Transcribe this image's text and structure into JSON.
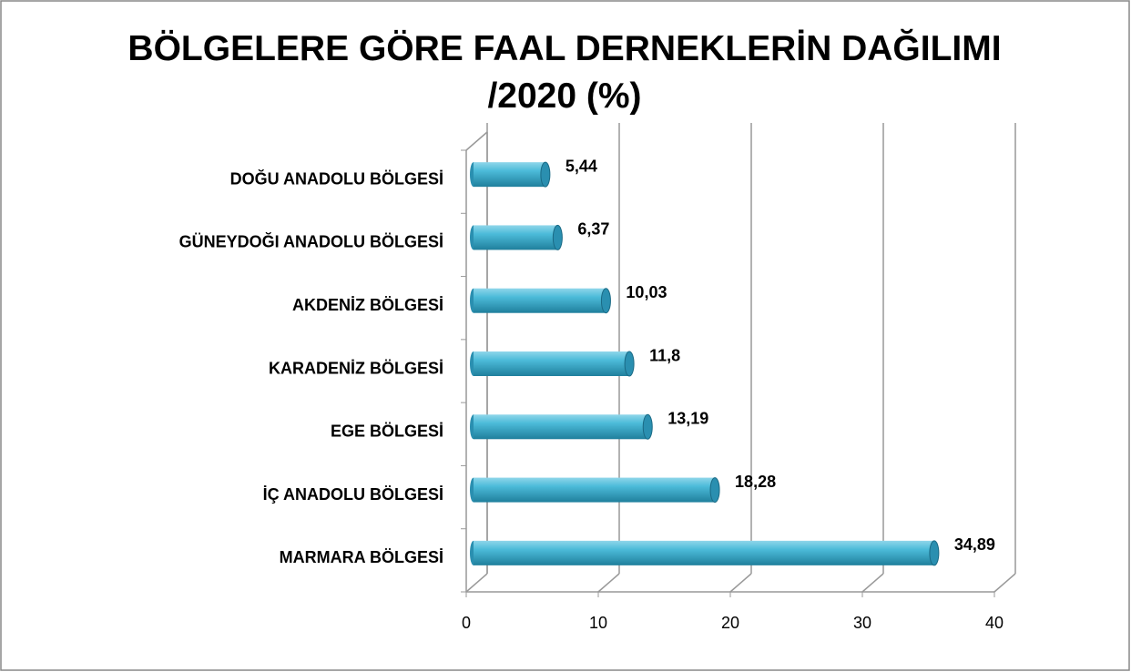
{
  "chart_data": {
    "type": "bar",
    "orientation": "horizontal",
    "title": "BÖLGELERE GÖRE FAAL DERNEKLERİN DAĞILIMI /2020 (%)",
    "categories": [
      "DOĞU ANADOLU BÖLGESİ",
      "GÜNEYDOĞI ANADOLU BÖLGESİ",
      "AKDENİZ BÖLGESİ",
      "KARADENİZ BÖLGESİ",
      "EGE BÖLGESİ",
      "İÇ ANADOLU BÖLGESİ",
      "MARMARA BÖLGESİ"
    ],
    "values": [
      5.44,
      6.37,
      10.03,
      11.8,
      13.19,
      18.28,
      34.89
    ],
    "value_labels": [
      "5,44",
      "6,37",
      "10,03",
      "11,8",
      "13,19",
      "18,28",
      "34,89"
    ],
    "color": "#3fb0d0",
    "xlim": [
      0,
      40
    ],
    "xticks": [
      0,
      10,
      20,
      30,
      40
    ],
    "grid": true
  }
}
